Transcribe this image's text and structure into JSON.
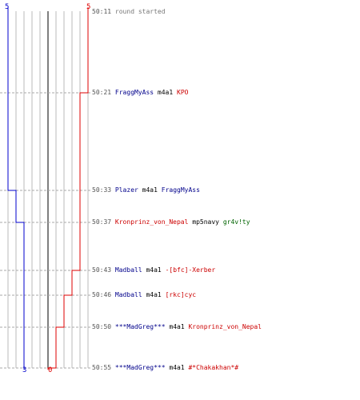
{
  "colors": {
    "blue_team": "#0000cc",
    "red_team": "#dd0000",
    "grid": "#bbbbbb",
    "center_axis": "#555555",
    "dash": "#aaaaaa"
  },
  "scores": {
    "blue_start": "5",
    "red_start": "5",
    "blue_end": "3",
    "red_end": "0"
  },
  "events": [
    {
      "time": "50:11",
      "killer": "",
      "killer_team": "",
      "weapon": "",
      "victim": "",
      "victim_team": "",
      "message": "round started",
      "blue_alive": 5,
      "red_alive": 5
    },
    {
      "time": "50:21",
      "killer": "FraggMyAss",
      "killer_team": "blue",
      "weapon": "m4a1",
      "victim": "KPO",
      "victim_team": "red",
      "message": "",
      "blue_alive": 5,
      "red_alive": 4
    },
    {
      "time": "50:33",
      "killer": "Plazer",
      "killer_team": "blue",
      "weapon": "m4a1",
      "victim": "FraggMyAss",
      "victim_team": "blue",
      "message": "",
      "blue_alive": 4,
      "red_alive": 4
    },
    {
      "time": "50:37",
      "killer": "Kronprinz_von_Nepal",
      "killer_team": "red",
      "weapon": "mp5navy",
      "victim": "gr4v!ty",
      "victim_team": "green",
      "message": "",
      "blue_alive": 3,
      "red_alive": 4
    },
    {
      "time": "50:43",
      "killer": "Madball",
      "killer_team": "blue",
      "weapon": "m4a1",
      "victim": "-[bfc]-Xerber",
      "victim_team": "red",
      "message": "",
      "blue_alive": 3,
      "red_alive": 3
    },
    {
      "time": "50:46",
      "killer": "Madball",
      "killer_team": "blue",
      "weapon": "m4a1",
      "victim": "[rkc]cyc",
      "victim_team": "red",
      "message": "",
      "blue_alive": 3,
      "red_alive": 2
    },
    {
      "time": "50:50",
      "killer": "***MadGreg***",
      "killer_team": "blue",
      "weapon": "m4a1",
      "victim": "Kronprinz_von_Nepal",
      "victim_team": "red",
      "message": "",
      "blue_alive": 3,
      "red_alive": 1
    },
    {
      "time": "50:55",
      "killer": "***MadGreg***",
      "killer_team": "blue",
      "weapon": "m4a1",
      "victim": "#*Chakakhan*#",
      "victim_team": "red",
      "message": "",
      "blue_alive": 3,
      "red_alive": 0
    }
  ]
}
